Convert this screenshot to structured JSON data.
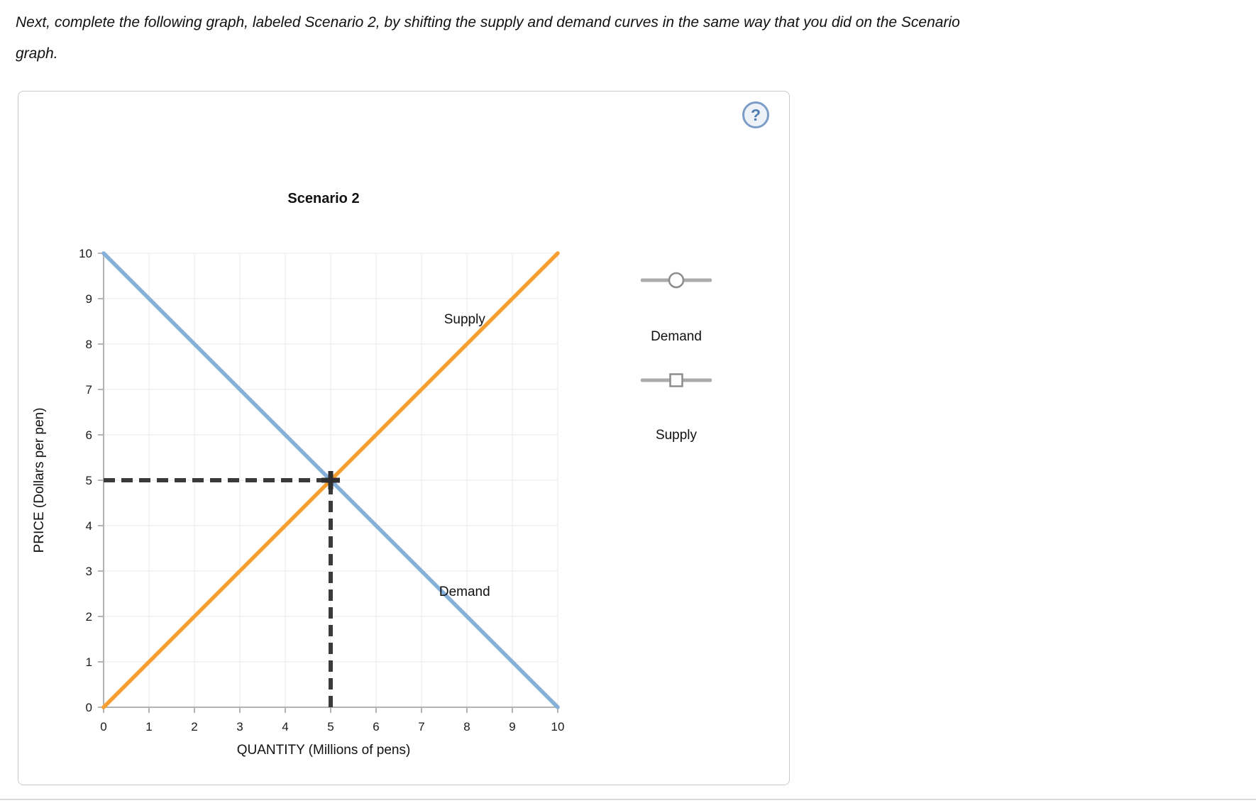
{
  "instruction": {
    "line1": "Next, complete the following graph, labeled Scenario 2, by shifting the supply and demand curves in the same way that you did on the Scenario",
    "line2": "graph."
  },
  "panel": {
    "help_label": "?"
  },
  "chart_data": {
    "type": "line",
    "title": "Scenario 2",
    "xlabel": "QUANTITY (Millions of pens)",
    "ylabel": "PRICE (Dollars per pen)",
    "xlim": [
      0,
      10
    ],
    "ylim": [
      0,
      10
    ],
    "xticks": [
      0,
      1,
      2,
      3,
      4,
      5,
      6,
      7,
      8,
      9,
      10
    ],
    "yticks": [
      0,
      1,
      2,
      3,
      4,
      5,
      6,
      7,
      8,
      9,
      10
    ],
    "grid": true,
    "legend_position": "right",
    "series": [
      {
        "name": "Demand",
        "color": "#85B0DA",
        "points": [
          [
            0,
            10
          ],
          [
            10,
            0
          ]
        ],
        "label": "Demand",
        "label_at": [
          7.95,
          2.55
        ]
      },
      {
        "name": "Supply",
        "color": "#F79F33",
        "points": [
          [
            0,
            0
          ],
          [
            10,
            10
          ]
        ],
        "label": "Supply",
        "label_at": [
          7.95,
          8.55
        ]
      }
    ],
    "equilibrium": {
      "x": 5,
      "y": 5,
      "color": "#3a3a3a"
    },
    "colors": {
      "grid": "#e9e9e9",
      "axis": "#9a9a9a",
      "tick_text": "#1a1a1a",
      "cross": "#2e2e2e"
    }
  },
  "legend": {
    "items": [
      {
        "label": "Demand",
        "marker": "circle"
      },
      {
        "label": "Supply",
        "marker": "square"
      }
    ]
  }
}
